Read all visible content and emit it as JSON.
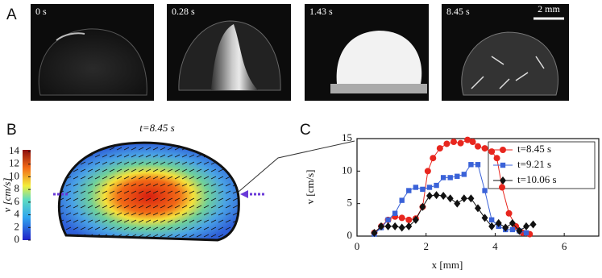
{
  "panel_labels": [
    "A",
    "B",
    "C"
  ],
  "images": [
    {
      "label": "0 s"
    },
    {
      "label": "0.28 s"
    },
    {
      "label": "1.43 s"
    },
    {
      "label": "8.45 s"
    }
  ],
  "scale_bar": "2 mm",
  "field": {
    "title": "t=8.45 s",
    "colorbar_label": "v [cm/s]",
    "colorbar_lim": [
      0,
      14
    ],
    "colorbar_ticks": [
      0,
      2,
      4,
      6,
      8,
      10,
      12,
      14
    ]
  },
  "chart_data": {
    "type": "line",
    "xlabel": "x [mm]",
    "ylabel": "v [cm/s]",
    "xlim": [
      0,
      7
    ],
    "ylim": [
      0,
      15
    ],
    "xticks": [
      0,
      2,
      4,
      6
    ],
    "yticks": [
      0,
      5,
      10,
      15
    ],
    "series": [
      {
        "name": "t=8.45 s",
        "color": "#e8261e",
        "marker": "circle",
        "x": [
          0.5,
          0.7,
          0.9,
          1.1,
          1.3,
          1.5,
          1.7,
          1.9,
          2.05,
          2.2,
          2.4,
          2.6,
          2.8,
          3.0,
          3.2,
          3.35,
          3.5,
          3.7,
          3.9,
          4.05,
          4.2,
          4.4,
          4.6,
          4.8,
          5.0
        ],
        "values": [
          0.5,
          1.5,
          2.5,
          3.0,
          2.8,
          2.5,
          2.7,
          4.5,
          10.0,
          12.0,
          13.5,
          14.2,
          14.5,
          14.3,
          14.8,
          14.5,
          13.8,
          13.5,
          13.0,
          12.0,
          7.5,
          3.5,
          1.5,
          0.5,
          0.3
        ]
      },
      {
        "name": "t=9.21 s",
        "color": "#3a62d8",
        "marker": "square",
        "x": [
          0.5,
          0.7,
          0.9,
          1.1,
          1.3,
          1.5,
          1.7,
          1.9,
          2.1,
          2.3,
          2.5,
          2.7,
          2.9,
          3.1,
          3.3,
          3.5,
          3.7,
          3.9,
          4.1,
          4.3,
          4.5,
          4.7,
          4.9
        ],
        "values": [
          0.3,
          1.3,
          2.5,
          3.5,
          5.5,
          7.0,
          7.5,
          7.2,
          7.5,
          7.8,
          9.0,
          9.0,
          9.2,
          9.5,
          11.0,
          11.0,
          7.0,
          2.5,
          1.5,
          1.0,
          1.0,
          0.8,
          0.5
        ]
      },
      {
        "name": "t=10.06 s",
        "color": "#111111",
        "marker": "diamond",
        "x": [
          0.5,
          0.7,
          0.9,
          1.1,
          1.3,
          1.5,
          1.7,
          1.9,
          2.1,
          2.3,
          2.5,
          2.7,
          2.9,
          3.1,
          3.3,
          3.5,
          3.7,
          3.9,
          4.1,
          4.3,
          4.5,
          4.7,
          4.9,
          5.1
        ],
        "values": [
          0.5,
          1.5,
          1.5,
          1.5,
          1.3,
          1.5,
          2.5,
          4.5,
          6.2,
          6.3,
          6.2,
          5.8,
          5.0,
          5.8,
          5.8,
          4.3,
          2.8,
          1.5,
          2.0,
          1.3,
          2.0,
          0.8,
          1.5,
          1.8
        ]
      }
    ]
  }
}
